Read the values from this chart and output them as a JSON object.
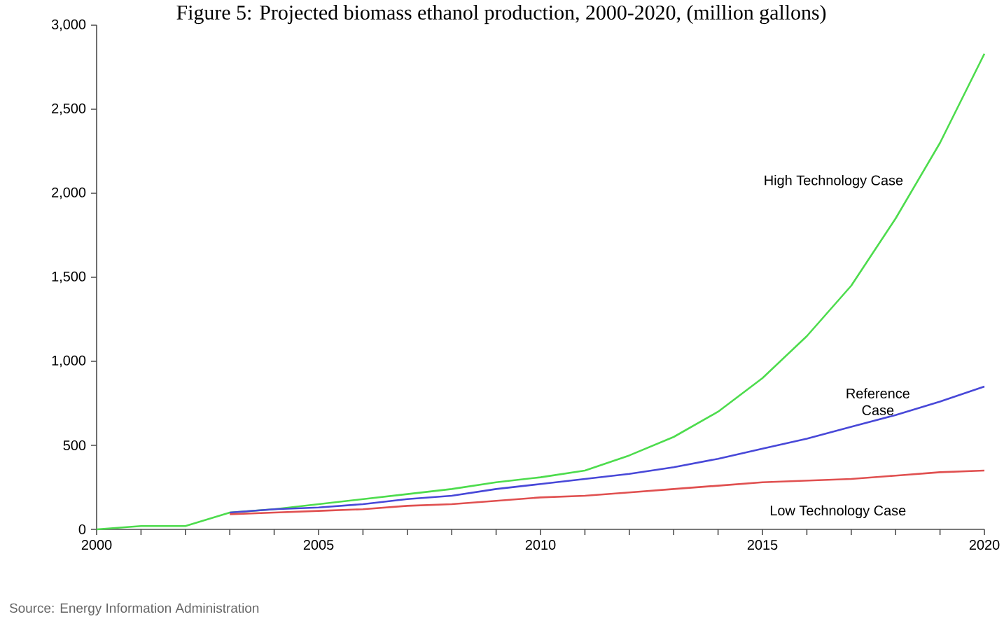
{
  "chart_data": {
    "type": "line",
    "title": "Figure 5: Projected biomass ethanol production, 2000-2020, (million gallons)",
    "annotations": [
      "Source: Energy Information Administration"
    ],
    "x": [
      2000,
      2001,
      2002,
      2003,
      2004,
      2005,
      2006,
      2007,
      2008,
      2009,
      2010,
      2011,
      2012,
      2013,
      2014,
      2015,
      2016,
      2017,
      2018,
      2019,
      2020
    ],
    "xlim": [
      2000,
      2020
    ],
    "xticks": [
      2000,
      2005,
      2010,
      2015,
      2020
    ],
    "ylim": [
      0,
      3000
    ],
    "yticks": [
      0,
      {
        "value": 500,
        "label": "500"
      },
      {
        "value": 1000,
        "label": "1,000"
      },
      {
        "value": 1500,
        "label": "1,500"
      },
      {
        "value": 2000,
        "label": "2,000"
      },
      {
        "value": 2500,
        "label": "2,500"
      },
      {
        "value": 3000,
        "label": "3,000"
      }
    ],
    "grid": false,
    "legend": false,
    "marker": "none",
    "line_style": "solid",
    "series": [
      {
        "name": "High Technology Case",
        "color": "#4ddc4d",
        "values": [
          0,
          20,
          20,
          100,
          120,
          150,
          180,
          210,
          240,
          280,
          310,
          350,
          440,
          550,
          700,
          900,
          1150,
          1450,
          1850,
          2300,
          2830
        ]
      },
      {
        "name": "Reference Case",
        "color": "#4848d8",
        "values": [
          null,
          null,
          null,
          100,
          120,
          130,
          150,
          180,
          200,
          240,
          270,
          300,
          330,
          370,
          420,
          480,
          540,
          610,
          680,
          760,
          850
        ]
      },
      {
        "name": "Low Technology Case",
        "color": "#e05050",
        "values": [
          null,
          null,
          null,
          90,
          100,
          110,
          120,
          140,
          150,
          170,
          190,
          200,
          220,
          240,
          260,
          280,
          290,
          300,
          320,
          340,
          350
        ]
      }
    ]
  }
}
